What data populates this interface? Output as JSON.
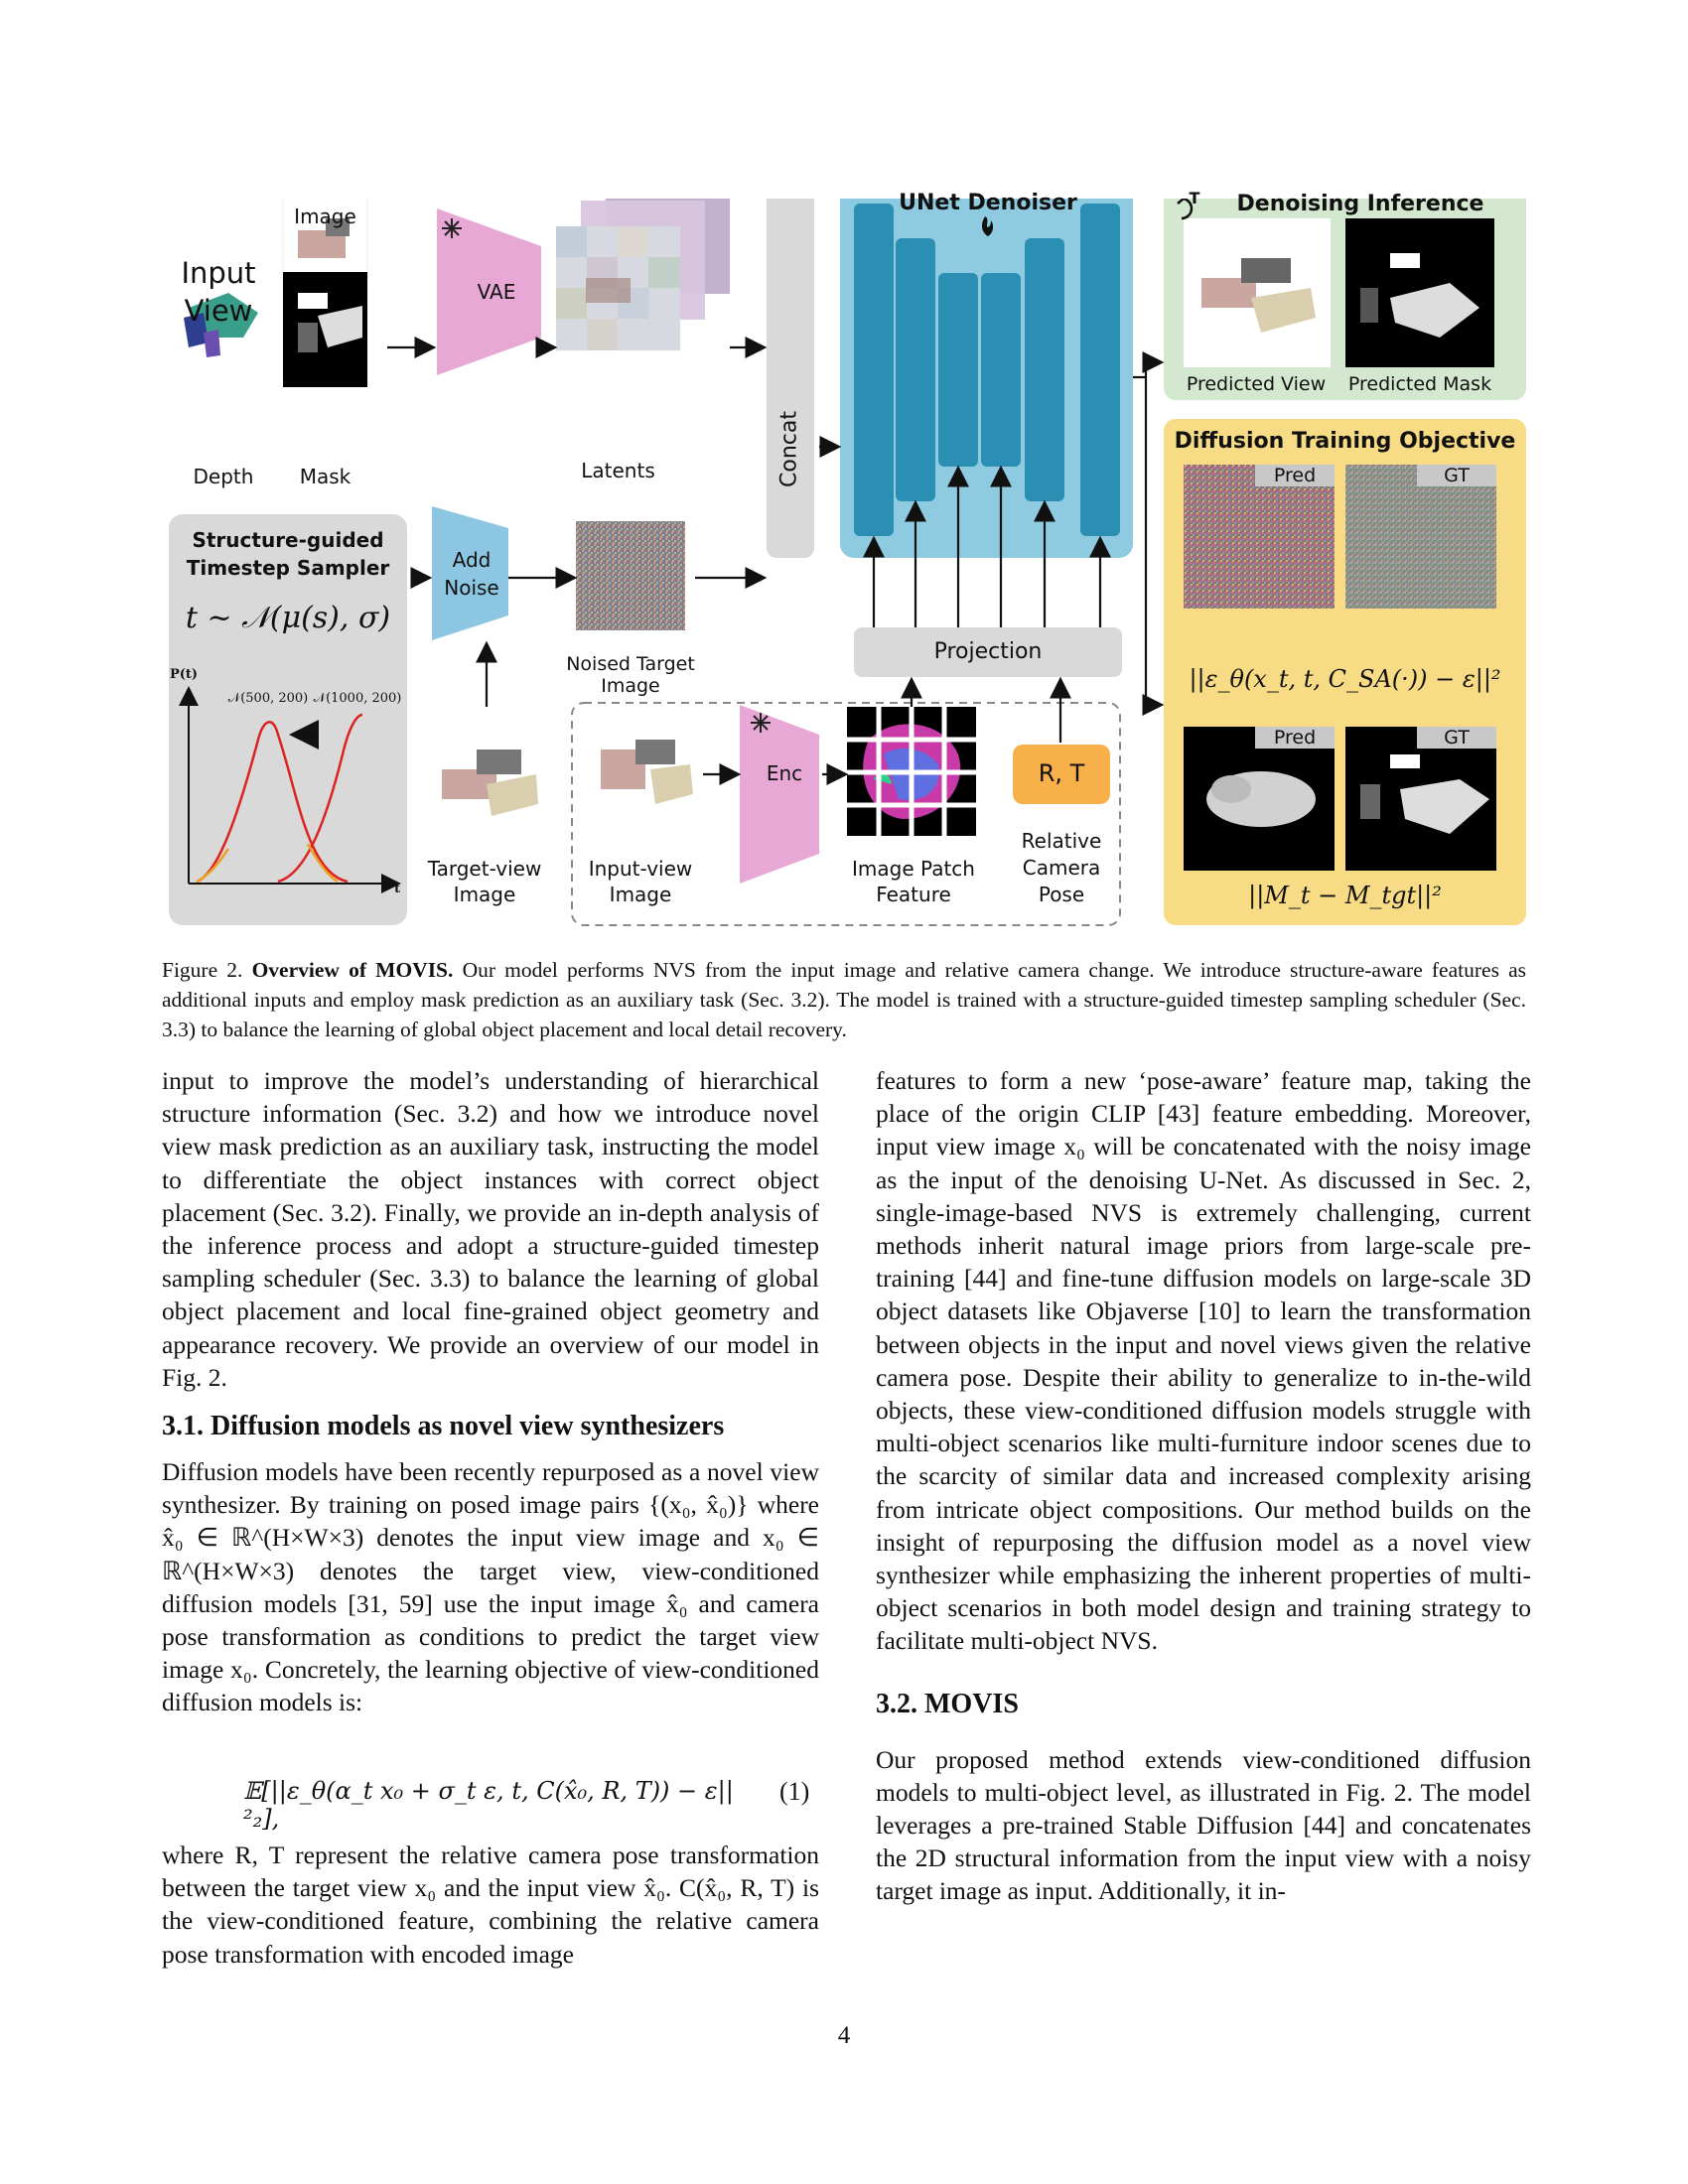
{
  "figure": {
    "input_view_title": "Input\nView",
    "image_label": "Image",
    "depth_label": "Depth",
    "mask_label": "Mask",
    "vae_label": "VAE",
    "latents_label": "Latents",
    "concat_label": "Concat",
    "unet_title": "UNet Denoiser",
    "sampler_title": "Structure-guided\nTimestep Sampler",
    "sampler_formula": "t ~ 𝒩(μ(s), σ)",
    "sampler_ylabel": "P(t)",
    "sampler_xlabel": "t",
    "curve1_label": "𝒩(500, 200)",
    "curve2_label": "𝒩(1000, 200)",
    "add_noise_label": "Add\nNoise",
    "noised_target_label": "Noised Target Image",
    "target_view_label": "Target-view\nImage",
    "input_view_label": "Input-view\nImage",
    "enc_label": "Enc",
    "patch_feature_label": "Image Patch\nFeature",
    "rt_label": "R, T",
    "relative_pose_label": "Relative\nCamera\nPose",
    "projection_label": "Projection",
    "inference_title": "Denoising Inference",
    "inference_icon_label": "T",
    "pred_view_label": "Predicted View",
    "pred_mask_label": "Predicted Mask",
    "training_title": "Diffusion Training Objective",
    "pred_tag": "Pred",
    "gt_tag": "GT",
    "loss1": "||ε_θ(x_t, t, C_SA(·)) − ε||²",
    "loss2": "||M_t − M_tgt||²"
  },
  "caption": {
    "prefix": "Figure 2.",
    "title": "Overview of MOVIS.",
    "text": "Our model performs NVS from the input image and relative camera change. We introduce structure-aware features as additional inputs and employ mask prediction as an auxiliary task (Sec. 3.2). The model is trained with a structure-guided timestep sampling scheduler (Sec. 3.3) to balance the learning of global object placement and local detail recovery."
  },
  "left_col": {
    "para1": "input to improve the model’s understanding of hierarchical structure information (Sec. 3.2) and how we introduce novel view mask prediction as an auxiliary task, instructing the model to differentiate the object instances with correct object placement (Sec. 3.2). Finally, we provide an in-depth analysis of the inference process and adopt a structure-guided timestep sampling scheduler (Sec. 3.3) to balance the learning of global object placement and local fine-grained object geometry and appearance recovery. We provide an overview of our model in Fig. 2.",
    "section_title": "3.1. Diffusion models as novel view synthesizers",
    "para2": "Diffusion models have been recently repurposed as a novel view synthesizer. By training on posed image pairs {(x₀, x̂₀)} where x̂₀ ∈ ℝ^(H×W×3) denotes the input view image and x₀ ∈ ℝ^(H×W×3) denotes the target view, view-conditioned diffusion models [31, 59] use the input image x̂₀ and camera pose transformation as conditions to predict the target view image x₀. Concretely, the learning objective of view-conditioned diffusion models is:",
    "equation": "𝔼[||ε_θ(α_t x₀ + σ_t ε, t, C(x̂₀, R, T)) − ε||²₂],",
    "equation_number": "(1)",
    "para3": "where R, T represent the relative camera pose transformation between the target view x₀ and the input view x̂₀. C(x̂₀, R, T) is the view-conditioned feature, combining the relative camera pose transformation with encoded image"
  },
  "right_col": {
    "para1": "features to form a new ‘pose-aware’ feature map, taking the place of the origin CLIP [43] feature embedding. Moreover, input view image x₀ will be concatenated with the noisy image as the input of the denoising U-Net. As discussed in Sec. 2, single-image-based NVS is extremely challenging, current methods inherit natural image priors from large-scale pre-training [44] and fine-tune diffusion models on large-scale 3D object datasets like Objaverse [10] to learn the transformation between objects in the input and novel views given the relative camera pose. Despite their ability to generalize to in-the-wild objects, these view-conditioned diffusion models struggle with multi-object scenarios like multi-furniture indoor scenes due to the scarcity of similar data and increased complexity arising from intricate object compositions. Our method builds on the insight of repurposing the diffusion model as a novel view synthesizer while emphasizing the inherent properties of multi-object scenarios in both model design and training strategy to facilitate multi-object NVS.",
    "section_title": "3.2. MOVIS",
    "para2": "Our proposed method extends view-conditioned diffusion models to multi-object level, as illustrated in Fig. 2. The model leverages a pre-trained Stable Diffusion [44] and concatenates the 2D structural information from the input view with a noisy target image as input. Additionally, it in-"
  },
  "page_number": "4",
  "colors": {
    "vae_pink": "#e7a8d6",
    "unet_blue": "#8fcbe0",
    "unet_dark": "#2b8fb3",
    "green_panel": "#d3e8cf",
    "yellow_panel": "#f7dc85",
    "sampler_gray": "#d9d9d9",
    "rt_orange": "#f8b04a",
    "add_noise_blue": "#8cc6e3",
    "link_blue": "#2a6db0"
  }
}
